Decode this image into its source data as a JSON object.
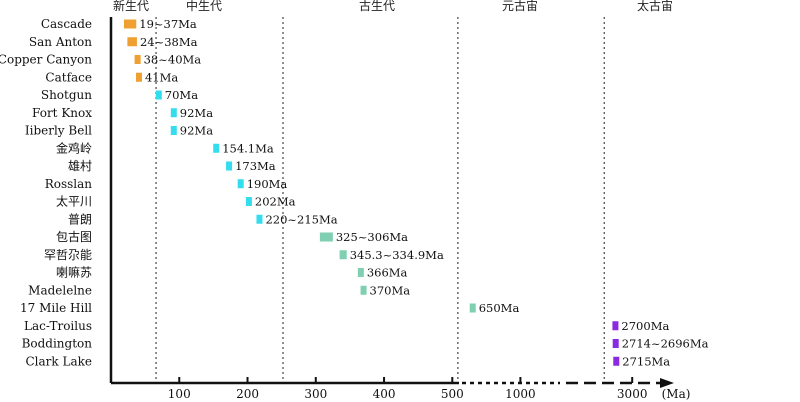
{
  "chart_data": {
    "type": "range-bar",
    "xlabel": "(Ma)",
    "ticks": [
      "100",
      "200",
      "300",
      "400",
      "500",
      "1000",
      "3000"
    ],
    "eras": [
      {
        "name": "新生代",
        "from": 0,
        "to": 66
      },
      {
        "name": "中生代",
        "from": 66,
        "to": 252
      },
      {
        "name": "古生代",
        "from": 252,
        "to": 541
      },
      {
        "name": "元古宙",
        "from": 541,
        "to": 2500
      },
      {
        "name": "太古宙",
        "from": 2500,
        "to": 4000
      }
    ],
    "era_boundaries": [
      66,
      252,
      541,
      2500
    ],
    "deposits": [
      {
        "name": "Cascade",
        "min": 19,
        "max": 37,
        "label": "19~37Ma",
        "color": "#F0A030"
      },
      {
        "name": "San Anton",
        "min": 24,
        "max": 38,
        "label": "24~38Ma",
        "color": "#F0A030"
      },
      {
        "name": "Copper Canyon",
        "min": 38,
        "max": 40,
        "label": "38~40Ma",
        "color": "#F0A030"
      },
      {
        "name": "Catface",
        "min": 41,
        "max": 41,
        "label": "41Ma",
        "color": "#F0A030"
      },
      {
        "name": "Shotgun",
        "min": 70,
        "max": 70,
        "label": "70Ma",
        "color": "#33DDEE"
      },
      {
        "name": "Fort Knox",
        "min": 92,
        "max": 92,
        "label": "92Ma",
        "color": "#33DDEE"
      },
      {
        "name": "Iiberly Bell",
        "min": 92,
        "max": 92,
        "label": "92Ma",
        "color": "#33DDEE"
      },
      {
        "name": "金鸡岭",
        "min": 154.1,
        "max": 154.1,
        "label": "154.1Ma",
        "color": "#33DDEE"
      },
      {
        "name": "雄村",
        "min": 173,
        "max": 173,
        "label": "173Ma",
        "color": "#33DDEE"
      },
      {
        "name": "Rosslan",
        "min": 190,
        "max": 190,
        "label": "190Ma",
        "color": "#33DDEE"
      },
      {
        "name": "太平川",
        "min": 202,
        "max": 202,
        "label": "202Ma",
        "color": "#33DDEE"
      },
      {
        "name": "普朗",
        "min": 215,
        "max": 220,
        "label": "220~215Ma",
        "color": "#33DDEE"
      },
      {
        "name": "包古图",
        "min": 306,
        "max": 325,
        "label": "325~306Ma",
        "color": "#7FCFB0"
      },
      {
        "name": "罕哲尕能",
        "min": 334.9,
        "max": 345.3,
        "label": "345.3~334.9Ma",
        "color": "#7FCFB0"
      },
      {
        "name": "喇嘛苏",
        "min": 366,
        "max": 366,
        "label": "366Ma",
        "color": "#7FCFB0"
      },
      {
        "name": "Madelelne",
        "min": 370,
        "max": 370,
        "label": "370Ma",
        "color": "#7FCFB0"
      },
      {
        "name": "17 Mile Hill",
        "min": 650,
        "max": 650,
        "label": "650Ma",
        "color": "#7FCFB0"
      },
      {
        "name": "Lac-Troilus",
        "min": 2700,
        "max": 2700,
        "label": "2700Ma",
        "color": "#8A2BE2"
      },
      {
        "name": "Boddington",
        "min": 2696,
        "max": 2714,
        "label": "2714~2696Ma",
        "color": "#8A2BE2"
      },
      {
        "name": "Clark Lake",
        "min": 2715,
        "max": 2715,
        "label": "2715Ma",
        "color": "#8A2BE2"
      }
    ]
  }
}
